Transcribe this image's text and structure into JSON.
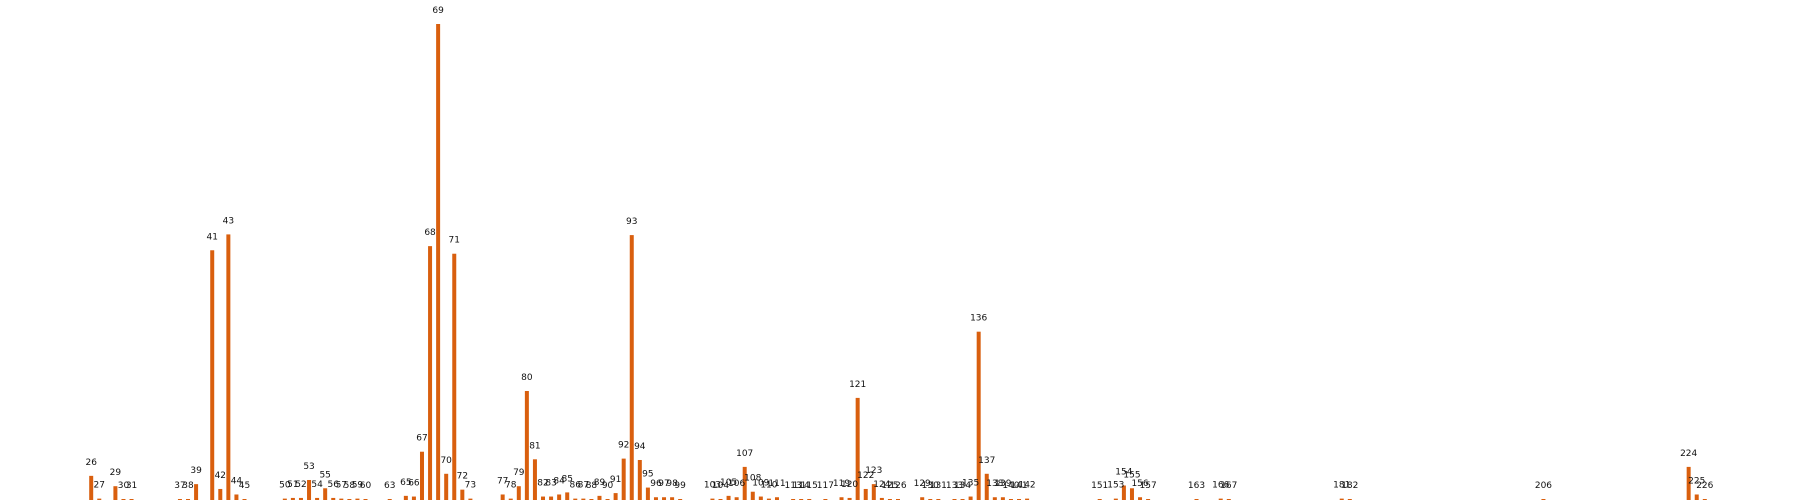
{
  "chart_data": {
    "type": "bar",
    "title": "",
    "xlabel": "",
    "ylabel": "",
    "ylim": [
      0,
      69
    ],
    "grid": false,
    "legend": "none",
    "bar_color": "#d95f0e",
    "x": [
      26,
      27,
      29,
      30,
      31,
      37,
      38,
      39,
      41,
      42,
      43,
      44,
      45,
      50,
      51,
      52,
      53,
      54,
      55,
      56,
      57,
      58,
      59,
      60,
      63,
      65,
      66,
      67,
      68,
      69,
      70,
      71,
      72,
      73,
      77,
      78,
      79,
      80,
      81,
      82,
      83,
      84,
      85,
      86,
      87,
      88,
      89,
      90,
      91,
      92,
      93,
      94,
      95,
      96,
      97,
      98,
      99,
      103,
      104,
      105,
      106,
      107,
      108,
      109,
      110,
      111,
      113,
      114,
      115,
      117,
      119,
      120,
      121,
      122,
      123,
      124,
      125,
      126,
      129,
      130,
      131,
      133,
      134,
      135,
      136,
      137,
      138,
      139,
      140,
      141,
      142,
      151,
      153,
      154,
      155,
      156,
      157,
      163,
      166,
      167,
      181,
      182,
      206,
      224,
      225,
      226
    ],
    "values": [
      3.5,
      0.2,
      2,
      0.1,
      0.1,
      0.1,
      0.1,
      2.3,
      36.2,
      1.6,
      38.5,
      0.8,
      0.1,
      0.2,
      0.3,
      0.3,
      2.9,
      0.3,
      1.7,
      0.3,
      0.2,
      0.1,
      0.2,
      0.1,
      0.1,
      0.6,
      0.5,
      7,
      36.8,
      69,
      3.8,
      35.7,
      1.5,
      0.2,
      0.8,
      0.2,
      2,
      15.8,
      5.9,
      0.5,
      0.5,
      0.8,
      1.1,
      0.2,
      0.2,
      0.1,
      0.6,
      0.1,
      1,
      6,
      38.4,
      5.8,
      1.8,
      0.4,
      0.4,
      0.4,
      0.1,
      0.2,
      0.1,
      0.6,
      0.4,
      4.8,
      1.2,
      0.5,
      0.2,
      0.4,
      0.1,
      0.1,
      0.1,
      0.1,
      0.4,
      0.3,
      14.8,
      1.6,
      2.3,
      0.3,
      0.1,
      0.1,
      0.4,
      0.1,
      0.1,
      0.1,
      0.1,
      0.5,
      24.4,
      3.8,
      0.4,
      0.4,
      0.1,
      0.1,
      0.2,
      0.1,
      0.2,
      2.1,
      1.7,
      0.4,
      0.1,
      0.1,
      0.2,
      0.1,
      0.2,
      0.1,
      0.1,
      4.8,
      0.8,
      0.1
    ]
  }
}
